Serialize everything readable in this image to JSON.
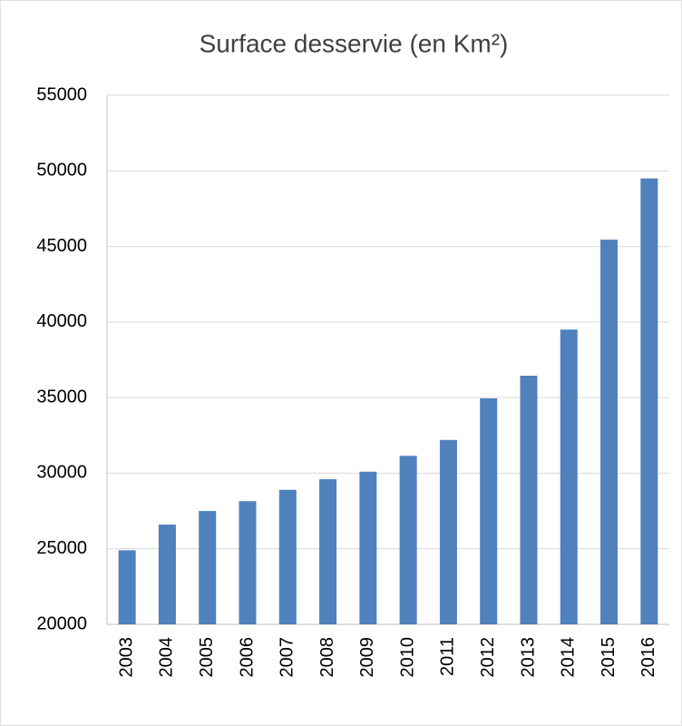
{
  "chart_data": {
    "type": "bar",
    "title": "Surface desservie (en Km²)",
    "categories": [
      "2003",
      "2004",
      "2005",
      "2006",
      "2007",
      "2008",
      "2009",
      "2010",
      "2011",
      "2012",
      "2013",
      "2014",
      "2015",
      "2016"
    ],
    "values": [
      24900,
      26600,
      27500,
      28150,
      28900,
      29600,
      30100,
      31150,
      32200,
      34950,
      36450,
      39500,
      45450,
      49500
    ],
    "color": "#4f81bd",
    "ylim": [
      20000,
      55000
    ],
    "yticks": [
      20000,
      25000,
      30000,
      35000,
      40000,
      45000,
      50000,
      55000
    ],
    "grid": true
  }
}
